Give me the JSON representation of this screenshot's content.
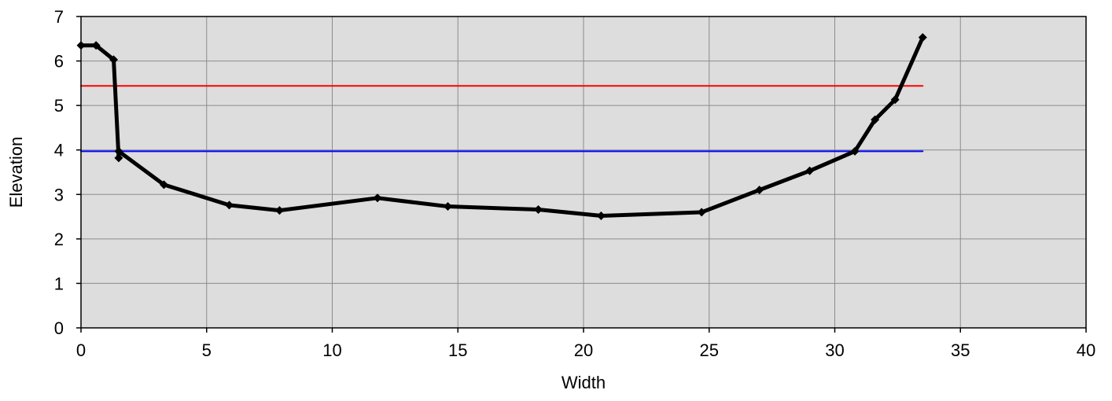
{
  "chart_data": {
    "type": "line",
    "xlabel": "Width",
    "ylabel": "Elevation",
    "xlim": [
      0,
      40
    ],
    "ylim": [
      0,
      7
    ],
    "x_ticks": [
      0,
      5,
      10,
      15,
      20,
      25,
      30,
      35,
      40
    ],
    "y_ticks": [
      0,
      1,
      2,
      3,
      4,
      5,
      6,
      7
    ],
    "grid": true,
    "plot_background": "#dddddd",
    "series": [
      {
        "kind": "profile",
        "color": "#000000",
        "markers": true,
        "x": [
          0,
          0.6,
          1.3,
          1.5,
          1.5,
          3.3,
          5.9,
          7.9,
          11.8,
          14.6,
          18.2,
          20.7,
          24.7,
          27.0,
          29.0,
          30.8,
          31.6,
          32.4,
          33.5
        ],
        "y": [
          6.35,
          6.35,
          6.03,
          3.82,
          3.97,
          3.22,
          2.76,
          2.64,
          2.92,
          2.73,
          2.66,
          2.52,
          2.6,
          3.1,
          3.53,
          3.97,
          4.68,
          5.13,
          6.53
        ]
      },
      {
        "kind": "level",
        "color": "#ff0000",
        "markers": false,
        "x": [
          0,
          33.5
        ],
        "y": [
          5.44,
          5.44
        ]
      },
      {
        "kind": "level",
        "color": "#0000ff",
        "markers": false,
        "x": [
          0,
          33.5
        ],
        "y": [
          3.97,
          3.97
        ]
      }
    ]
  }
}
